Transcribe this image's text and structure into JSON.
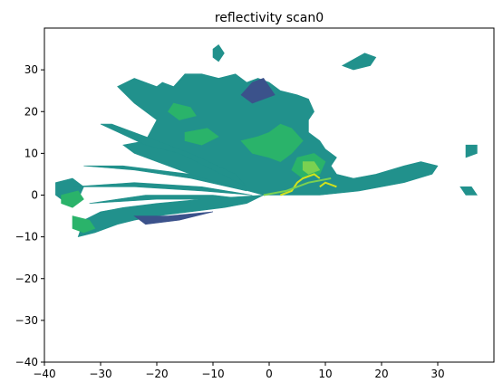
{
  "chart_data": {
    "type": "heatmap",
    "title": "reflectivity scan0",
    "xlabel": "",
    "ylabel": "",
    "xlim": [
      -40,
      40
    ],
    "ylim": [
      -40,
      40
    ],
    "xticks": [
      -40,
      -30,
      -20,
      -10,
      0,
      10,
      20,
      30
    ],
    "yticks": [
      -40,
      -30,
      -20,
      -10,
      0,
      10,
      20,
      30
    ],
    "grid": false,
    "colormap": "viridis",
    "colors": {
      "low": "#3b528b",
      "mid": "#21918c",
      "high": "#2ab36a",
      "peak": "#7ad151",
      "max": "#d2e21b"
    },
    "echo_regions": [
      {
        "level": "mid",
        "polygon": [
          [
            -1,
            0
          ],
          [
            -12,
            4
          ],
          [
            -20,
            8
          ],
          [
            -24,
            10
          ],
          [
            -26,
            12
          ],
          [
            -22,
            13
          ],
          [
            -20,
            18
          ],
          [
            -24,
            22
          ],
          [
            -27,
            26
          ],
          [
            -24,
            28
          ],
          [
            -20,
            26
          ],
          [
            -19,
            27
          ],
          [
            -17,
            26
          ],
          [
            -15,
            29
          ],
          [
            -12,
            29
          ],
          [
            -9,
            28
          ],
          [
            -6,
            29
          ],
          [
            -4,
            27
          ],
          [
            -2,
            28
          ],
          [
            0,
            27
          ],
          [
            2,
            25
          ],
          [
            5,
            24
          ],
          [
            7,
            23
          ],
          [
            8,
            20
          ],
          [
            7,
            18
          ],
          [
            7,
            15
          ],
          [
            9,
            13
          ],
          [
            10,
            11
          ],
          [
            12,
            9
          ],
          [
            11,
            7
          ],
          [
            12,
            5
          ],
          [
            15,
            4
          ],
          [
            19,
            5
          ],
          [
            24,
            7
          ],
          [
            27,
            8
          ],
          [
            30,
            7
          ],
          [
            29,
            5
          ],
          [
            24,
            3
          ],
          [
            16,
            1
          ],
          [
            9,
            0
          ]
        ]
      },
      {
        "level": "mid",
        "polygon": [
          [
            -1,
            0
          ],
          [
            -12,
            -1
          ],
          [
            -20,
            -2
          ],
          [
            -26,
            -3
          ],
          [
            -30,
            -4
          ],
          [
            -33,
            -6
          ],
          [
            -34,
            -10
          ],
          [
            -31,
            -9
          ],
          [
            -27,
            -7
          ],
          [
            -24,
            -6
          ],
          [
            -20,
            -5
          ],
          [
            -14,
            -4
          ],
          [
            -8,
            -3
          ],
          [
            -4,
            -2
          ]
        ]
      },
      {
        "level": "mid",
        "polygon": [
          [
            -38,
            3
          ],
          [
            -35,
            4
          ],
          [
            -33,
            2
          ],
          [
            -34,
            -1
          ],
          [
            -36,
            -2
          ],
          [
            -38,
            0
          ]
        ]
      },
      {
        "level": "mid",
        "polygon": [
          [
            -30,
            17
          ],
          [
            -22,
            12
          ],
          [
            -16,
            10
          ],
          [
            -10,
            6
          ],
          [
            -4,
            2
          ],
          [
            -6,
            5
          ],
          [
            -14,
            10
          ],
          [
            -22,
            14
          ],
          [
            -28,
            17
          ]
        ]
      },
      {
        "level": "mid",
        "polygon": [
          [
            -33,
            7
          ],
          [
            -24,
            6
          ],
          [
            -14,
            4
          ],
          [
            -4,
            1
          ],
          [
            -14,
            5
          ],
          [
            -26,
            7
          ]
        ]
      },
      {
        "level": "mid",
        "polygon": [
          [
            -35,
            2
          ],
          [
            -24,
            2
          ],
          [
            -12,
            1
          ],
          [
            -3,
            0
          ],
          [
            -12,
            2
          ],
          [
            -24,
            3
          ]
        ]
      },
      {
        "level": "mid",
        "polygon": [
          [
            -32,
            -2
          ],
          [
            -20,
            -1
          ],
          [
            -10,
            -1
          ],
          [
            -4,
            -1
          ],
          [
            -10,
            0
          ],
          [
            -22,
            0
          ]
        ]
      },
      {
        "level": "mid",
        "polygon": [
          [
            -9,
            32
          ],
          [
            -8,
            34
          ],
          [
            -9,
            36
          ],
          [
            -10,
            35
          ],
          [
            -10,
            33
          ]
        ]
      },
      {
        "level": "mid",
        "polygon": [
          [
            35,
            12
          ],
          [
            37,
            12
          ],
          [
            37,
            10
          ],
          [
            35,
            9
          ]
        ]
      },
      {
        "level": "mid",
        "polygon": [
          [
            34,
            2
          ],
          [
            36,
            2
          ],
          [
            37,
            0
          ],
          [
            35,
            0
          ]
        ]
      },
      {
        "level": "mid",
        "polygon": [
          [
            13,
            31
          ],
          [
            17,
            34
          ],
          [
            19,
            33
          ],
          [
            18,
            31
          ],
          [
            15,
            30
          ]
        ]
      },
      {
        "level": "high",
        "polygon": [
          [
            -17,
            22
          ],
          [
            -14,
            21
          ],
          [
            -13,
            19
          ],
          [
            -16,
            18
          ],
          [
            -18,
            20
          ]
        ]
      },
      {
        "level": "high",
        "polygon": [
          [
            -5,
            13
          ],
          [
            -2,
            14
          ],
          [
            0,
            15
          ],
          [
            2,
            17
          ],
          [
            4,
            16
          ],
          [
            6,
            13
          ],
          [
            4,
            10
          ],
          [
            2,
            8
          ],
          [
            0,
            9
          ],
          [
            -3,
            10
          ]
        ]
      },
      {
        "level": "high",
        "polygon": [
          [
            -37,
            0
          ],
          [
            -34,
            1
          ],
          [
            -33,
            -1
          ],
          [
            -35,
            -3
          ],
          [
            -37,
            -2
          ]
        ]
      },
      {
        "level": "high",
        "polygon": [
          [
            -35,
            -5
          ],
          [
            -32,
            -6
          ],
          [
            -31,
            -8
          ],
          [
            -33,
            -9
          ],
          [
            -35,
            -8
          ]
        ]
      },
      {
        "level": "high",
        "polygon": [
          [
            -15,
            15
          ],
          [
            -11,
            16
          ],
          [
            -9,
            14
          ],
          [
            -12,
            12
          ],
          [
            -15,
            13
          ]
        ]
      },
      {
        "level": "high",
        "polygon": [
          [
            5,
            9
          ],
          [
            8,
            10
          ],
          [
            10,
            8
          ],
          [
            9,
            5
          ],
          [
            6,
            4
          ],
          [
            4,
            6
          ]
        ]
      },
      {
        "level": "peak",
        "polygon": [
          [
            6,
            8
          ],
          [
            8,
            8
          ],
          [
            9,
            6
          ],
          [
            7,
            5
          ],
          [
            6,
            6
          ]
        ]
      },
      {
        "level": "low",
        "polygon": [
          [
            -1,
            28
          ],
          [
            1,
            24
          ],
          [
            -3,
            22
          ],
          [
            -5,
            24
          ],
          [
            -3,
            27
          ]
        ]
      },
      {
        "level": "low",
        "polygon": [
          [
            -24,
            -5
          ],
          [
            -18,
            -5
          ],
          [
            -10,
            -4
          ],
          [
            -16,
            -6
          ],
          [
            -22,
            -7
          ]
        ]
      }
    ],
    "echo_lines": [
      {
        "level": "max",
        "points": [
          [
            2,
            0
          ],
          [
            4,
            1
          ],
          [
            5,
            3
          ],
          [
            6,
            4
          ],
          [
            8,
            5
          ],
          [
            9,
            4
          ]
        ]
      },
      {
        "level": "max",
        "points": [
          [
            9,
            2
          ],
          [
            10,
            3
          ],
          [
            12,
            2
          ]
        ]
      },
      {
        "level": "peak",
        "points": [
          [
            -1,
            0
          ],
          [
            3,
            1
          ],
          [
            7,
            3
          ],
          [
            11,
            4
          ]
        ]
      }
    ]
  }
}
